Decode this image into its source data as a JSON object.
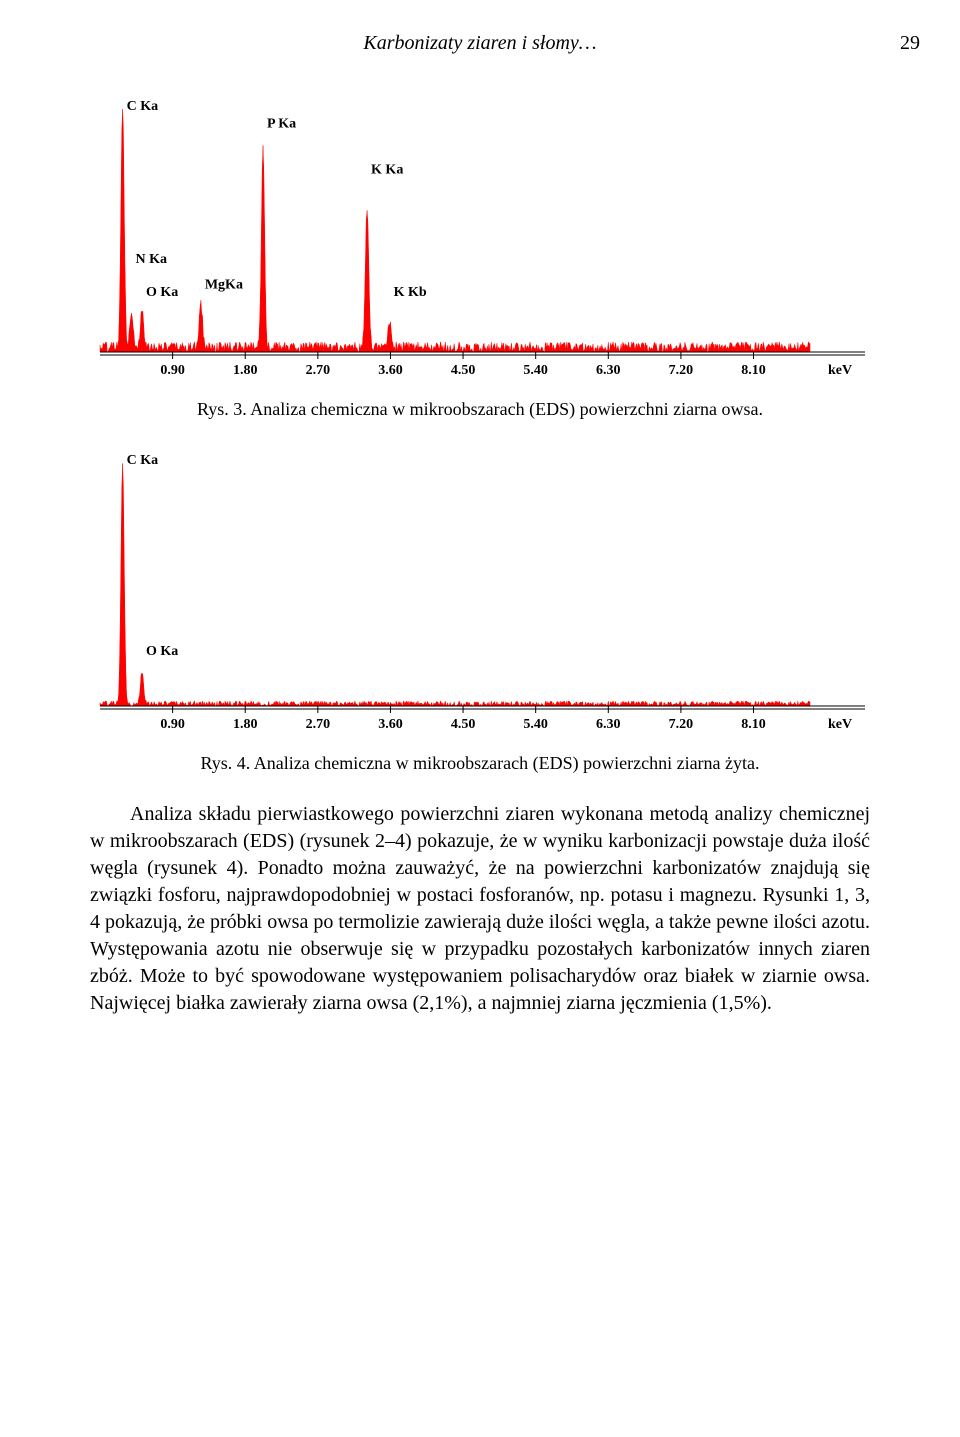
{
  "header": {
    "running": "Karbonizaty ziaren i słomy…",
    "page": "29"
  },
  "fig3": {
    "caption": "Rys. 3. Analiza chemiczna w mikroobszarach (EDS) powierzchni ziarna owsa.",
    "type": "eds-spectrum",
    "xticks": [
      0.9,
      1.8,
      2.7,
      3.6,
      4.5,
      5.4,
      6.3,
      7.2,
      8.1
    ],
    "xunit": "keV",
    "xlim": [
      0,
      8.8
    ],
    "ylim": [
      0,
      100
    ],
    "series_color": "#ff0000",
    "axis_color": "#000000",
    "background_color": "#ffffff",
    "axis_fontsize": 14,
    "axis_fontweight": "bold",
    "peaks": [
      {
        "x": 0.28,
        "h": 95,
        "label": "C Ka",
        "ly": 5
      },
      {
        "x": 0.39,
        "h": 15,
        "label": "N Ka",
        "ly": 65
      },
      {
        "x": 0.52,
        "h": 14,
        "label": "O Ka",
        "ly": 78
      },
      {
        "x": 1.25,
        "h": 17,
        "label": "MgKa",
        "ly": 75
      },
      {
        "x": 2.02,
        "h": 80,
        "label": "P Ka",
        "ly": 12
      },
      {
        "x": 3.31,
        "h": 55,
        "label": "K Ka",
        "ly": 30
      },
      {
        "x": 3.59,
        "h": 10,
        "label": "K Kb",
        "ly": 78
      }
    ],
    "noise_level": 4
  },
  "fig4": {
    "caption": "Rys. 4. Analiza chemiczna w mikroobszarach (EDS) powierzchni ziarna żyta.",
    "type": "eds-spectrum",
    "xticks": [
      0.9,
      1.8,
      2.7,
      3.6,
      4.5,
      5.4,
      6.3,
      7.2,
      8.1
    ],
    "xunit": "keV",
    "xlim": [
      0,
      8.8
    ],
    "ylim": [
      0,
      100
    ],
    "series_color": "#ff0000",
    "axis_color": "#000000",
    "background_color": "#ffffff",
    "axis_fontsize": 14,
    "axis_fontweight": "bold",
    "peaks": [
      {
        "x": 0.28,
        "h": 95,
        "label": "C Ka",
        "ly": 5
      },
      {
        "x": 0.52,
        "h": 12,
        "label": "O Ka",
        "ly": 80
      }
    ],
    "noise_level": 2
  },
  "paragraph": "Analiza składu pierwiastkowego powierzchni ziaren wykonana metodą analizy chemicznej w mikroobszarach (EDS) (rysunek 2–4) pokazuje, że w wyniku karbonizacji powstaje duża ilość węgla (rysunek 4). Ponadto można zauważyć, że na powierzchni karbonizatów znajdują się związki fosforu, najprawdopodobniej w postaci fosforanów, np. potasu i magnezu. Rysunki 1, 3, 4 pokazują, że próbki owsa po termolizie zawierają duże ilości węgla, a także pewne ilości azotu. Występowania azotu nie obserwuje się w przypadku pozostałych karbonizatów innych ziaren zbóż. Może to być spowodowane występowaniem polisacharydów oraz białek w ziarnie owsa. Najwięcej białka zawierały ziarna owsa (2,1%), a najmniej ziarna jęczmienia (1,5%)."
}
